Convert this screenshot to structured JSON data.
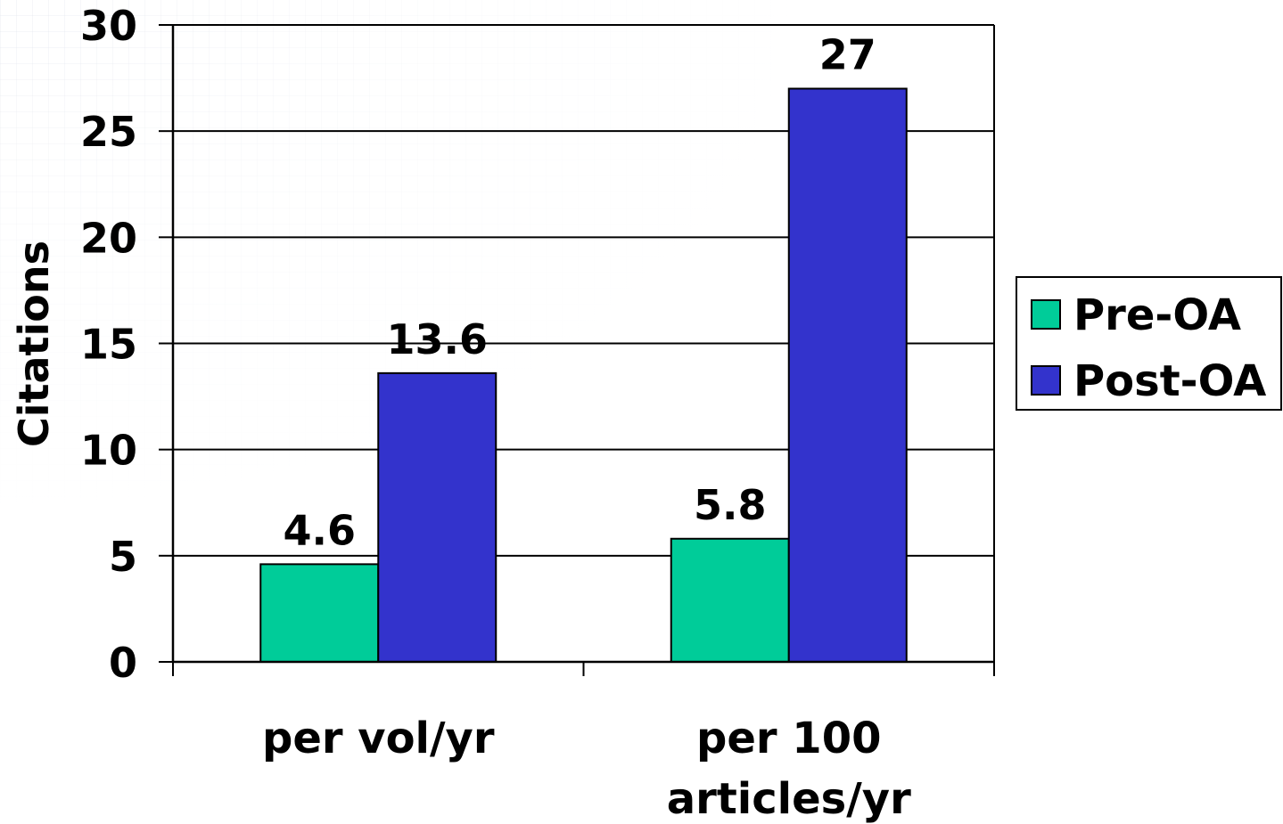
{
  "chart_data": {
    "type": "bar",
    "title": "",
    "xlabel": "",
    "ylabel": "Citations",
    "categories": [
      "per vol/yr",
      "per 100 articles/yr"
    ],
    "series": [
      {
        "name": "Pre-OA",
        "values": [
          4.6,
          5.8
        ],
        "labels": [
          "4.6",
          "5.8"
        ],
        "color": "#00cc99"
      },
      {
        "name": "Post-OA",
        "values": [
          13.6,
          27
        ],
        "labels": [
          "13.6",
          "27"
        ],
        "color": "#3333cc"
      }
    ],
    "ylim": [
      0,
      30
    ],
    "yticks": [
      0,
      5,
      10,
      15,
      20,
      25,
      30
    ],
    "grid": true,
    "legend_position": "right"
  }
}
